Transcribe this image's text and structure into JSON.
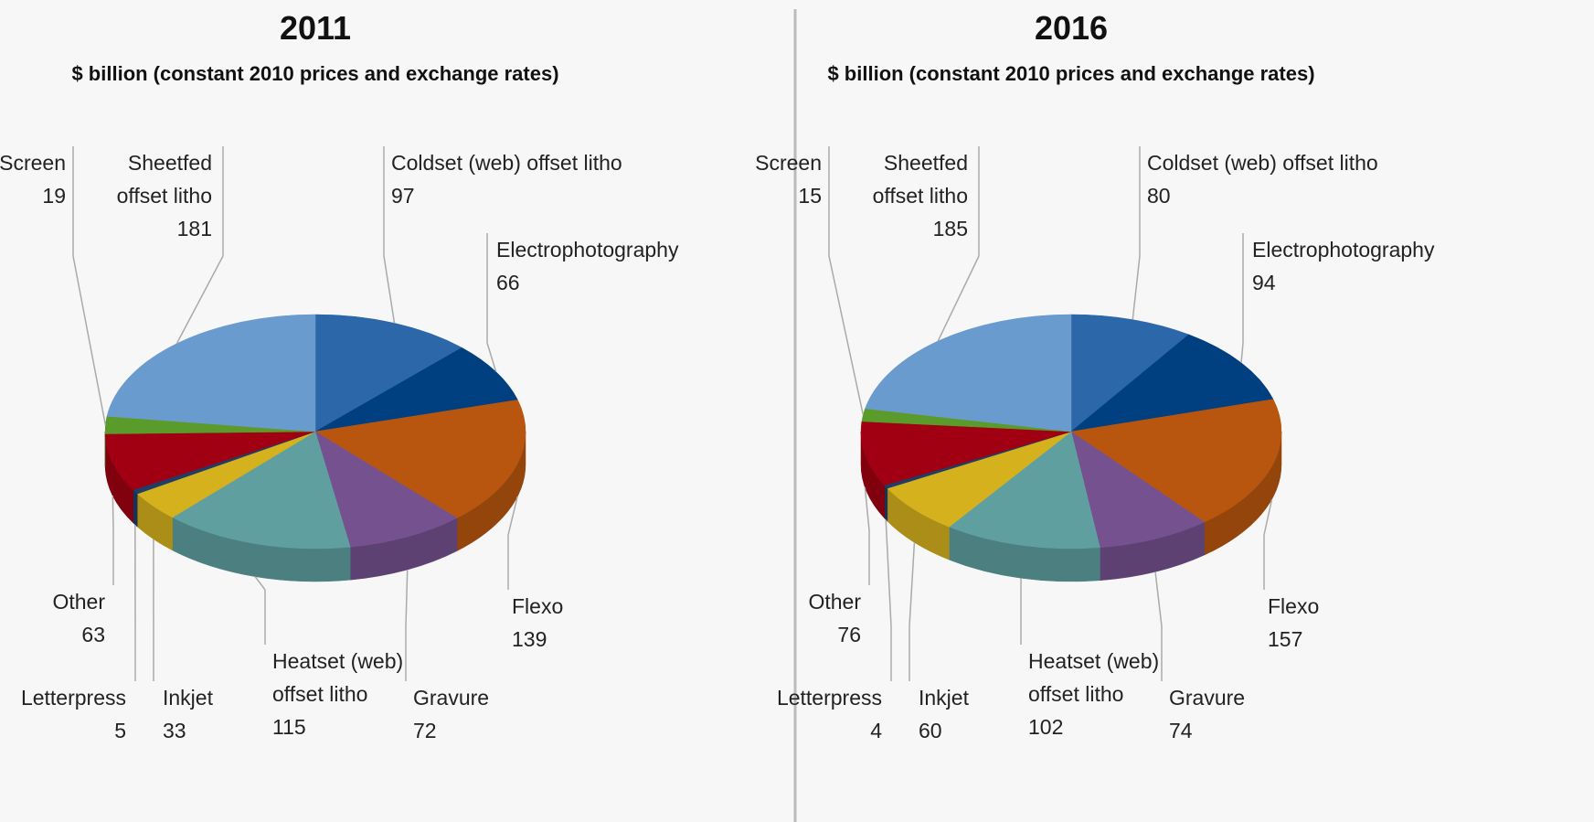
{
  "chart_data": [
    {
      "type": "pie",
      "title": "2011",
      "subtitle": "$ billion (constant 2010 prices and exchange rates)",
      "categories": [
        "Coldset (web) offset litho",
        "Electrophotography",
        "Flexo",
        "Gravure",
        "Heatset (web) offset litho",
        "Inkjet",
        "Letterpress",
        "Other",
        "Screen",
        "Sheetfed offset litho"
      ],
      "values": [
        97,
        66,
        139,
        72,
        115,
        33,
        5,
        63,
        19,
        181
      ],
      "colors": [
        "#2b67a9",
        "#003f80",
        "#b8560f",
        "#765190",
        "#5f9fa0",
        "#d4b11d",
        "#1f3d66",
        "#a00012",
        "#5a9b2b",
        "#6a9bcf"
      ]
    },
    {
      "type": "pie",
      "title": "2016",
      "subtitle": "$ billion (constant 2010 prices and exchange rates)",
      "categories": [
        "Coldset (web) offset litho",
        "Electrophotography",
        "Flexo",
        "Gravure",
        "Heatset (web) offset litho",
        "Inkjet",
        "Letterpress",
        "Other",
        "Screen",
        "Sheetfed offset litho"
      ],
      "values": [
        80,
        94,
        157,
        74,
        102,
        60,
        4,
        76,
        15,
        185
      ],
      "colors": [
        "#2b67a9",
        "#003f80",
        "#b8560f",
        "#765190",
        "#5f9fa0",
        "#d4b11d",
        "#1f3d66",
        "#a00012",
        "#5a9b2b",
        "#6a9bcf"
      ]
    }
  ]
}
